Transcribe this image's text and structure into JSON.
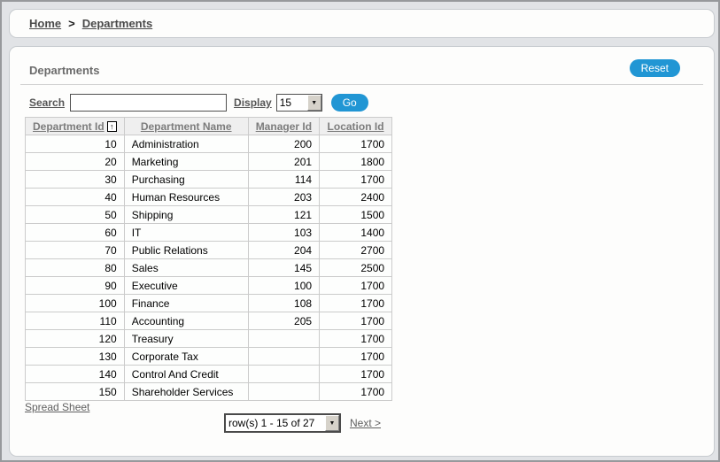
{
  "breadcrumb": {
    "separator": ">",
    "items": [
      {
        "label": "Home"
      },
      {
        "label": "Departments"
      }
    ]
  },
  "region": {
    "title": "Departments",
    "reset_button": "Reset"
  },
  "toolbar": {
    "search_label": "Search",
    "search_value": "",
    "display_label": "Display",
    "display_value": "15",
    "go_button": "Go"
  },
  "table": {
    "columns": [
      {
        "label": "Department Id",
        "align": "right",
        "sorted": true,
        "sort_icon": "sort-ascending-icon",
        "sort_glyph": "↑"
      },
      {
        "label": "Department Name",
        "align": "left"
      },
      {
        "label": "Manager Id",
        "align": "right"
      },
      {
        "label": "Location Id",
        "align": "right"
      }
    ],
    "rows": [
      [
        "10",
        "Administration",
        "200",
        "1700"
      ],
      [
        "20",
        "Marketing",
        "201",
        "1800"
      ],
      [
        "30",
        "Purchasing",
        "114",
        "1700"
      ],
      [
        "40",
        "Human Resources",
        "203",
        "2400"
      ],
      [
        "50",
        "Shipping",
        "121",
        "1500"
      ],
      [
        "60",
        "IT",
        "103",
        "1400"
      ],
      [
        "70",
        "Public Relations",
        "204",
        "2700"
      ],
      [
        "80",
        "Sales",
        "145",
        "2500"
      ],
      [
        "90",
        "Executive",
        "100",
        "1700"
      ],
      [
        "100",
        "Finance",
        "108",
        "1700"
      ],
      [
        "110",
        "Accounting",
        "205",
        "1700"
      ],
      [
        "120",
        "Treasury",
        "",
        "1700"
      ],
      [
        "130",
        "Corporate Tax",
        "",
        "1700"
      ],
      [
        "140",
        "Control And Credit",
        "",
        "1700"
      ],
      [
        "150",
        "Shareholder Services",
        "",
        "1700"
      ]
    ]
  },
  "footer": {
    "spreadsheet_link": "Spread Sheet",
    "pagination_value": "row(s) 1 - 15 of 27",
    "next_link": "Next >"
  },
  "colors": {
    "accent_blue": "#2196D4",
    "page_background": "#E1E3E6",
    "panel_background": "#FDFDFC",
    "table_header_background": "#EFEFEF",
    "link_gray": "#5F5F5F"
  }
}
